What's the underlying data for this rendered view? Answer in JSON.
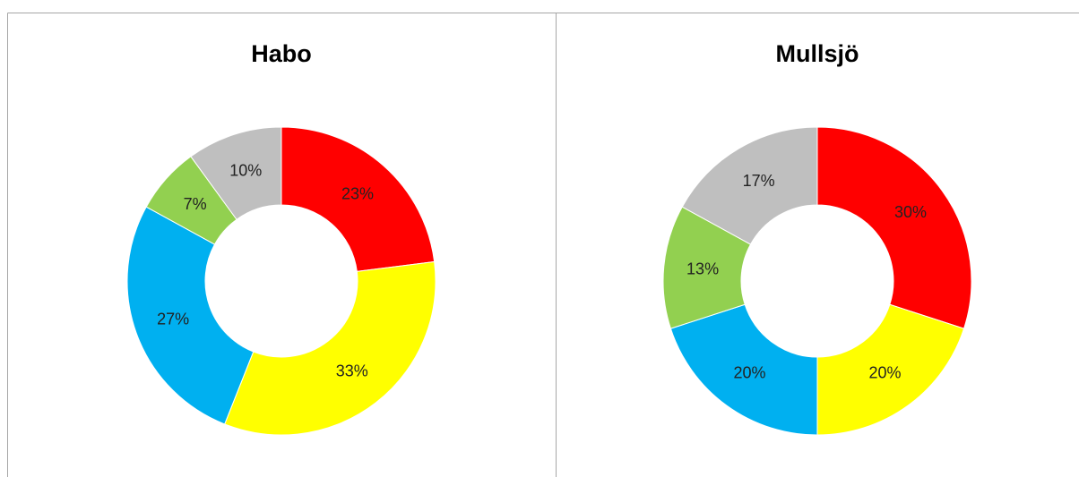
{
  "chart_data": [
    {
      "type": "doughnut",
      "title": "Habo",
      "values": [
        23,
        33,
        27,
        7,
        10
      ],
      "value_labels": [
        "23%",
        "33%",
        "27%",
        "7%",
        "10%"
      ],
      "colors": [
        "#ff0000",
        "#ffff00",
        "#00b0f0",
        "#92d050",
        "#bfbfbf"
      ]
    },
    {
      "type": "doughnut",
      "title": "Mullsjö",
      "values": [
        30,
        20,
        20,
        13,
        17
      ],
      "value_labels": [
        "30%",
        "20%",
        "20%",
        "13%",
        "17%"
      ],
      "colors": [
        "#ff0000",
        "#ffff00",
        "#00b0f0",
        "#92d050",
        "#bfbfbf"
      ]
    }
  ]
}
